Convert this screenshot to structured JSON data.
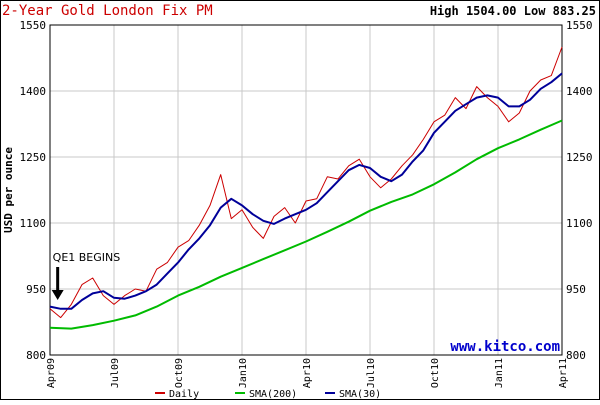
{
  "header": {
    "title": "2-Year Gold London Fix PM",
    "high_low": "High 1504.00 Low 883.25"
  },
  "watermark": "www.kitco.com",
  "annotation": {
    "text": "QE1 BEGINS",
    "date": "Apr09b"
  },
  "colors": {
    "daily": "#cc0000",
    "sma200": "#00bb00",
    "sma30": "#000099",
    "grid": "#c8c8c8",
    "title": "#cc0000",
    "watermark": "#0000cc"
  },
  "chart_data": {
    "type": "line",
    "ylabel": "USD per ounce",
    "ylim": [
      800,
      1550
    ],
    "yticks": [
      800,
      950,
      1100,
      1250,
      1400,
      1550
    ],
    "ytick_labels": [
      "800",
      "950",
      "1100",
      "1250",
      "1400",
      "1550"
    ],
    "xtick_labels": [
      "Apr09",
      "Jul09",
      "Oct09",
      "Jan10",
      "Apr10",
      "Jul10",
      "Oct10",
      "Jan11",
      "Apr11"
    ],
    "grid": true,
    "legend_position": "bottom",
    "series": [
      {
        "name": "Daily",
        "color": "#cc0000",
        "values": [
          [
            "Apr09",
            905
          ],
          [
            "Apr09b",
            885
          ],
          [
            "May09a",
            915
          ],
          [
            "May09b",
            960
          ],
          [
            "Jun09a",
            975
          ],
          [
            "Jun09b",
            935
          ],
          [
            "Jul09a",
            915
          ],
          [
            "Jul09b",
            935
          ],
          [
            "Aug09a",
            950
          ],
          [
            "Aug09b",
            945
          ],
          [
            "Sep09a",
            995
          ],
          [
            "Sep09b",
            1010
          ],
          [
            "Oct09a",
            1045
          ],
          [
            "Oct09b",
            1060
          ],
          [
            "Nov09a",
            1095
          ],
          [
            "Nov09b",
            1140
          ],
          [
            "Dec09a",
            1210
          ],
          [
            "Dec09b",
            1110
          ],
          [
            "Jan10a",
            1130
          ],
          [
            "Jan10b",
            1090
          ],
          [
            "Feb10a",
            1065
          ],
          [
            "Feb10b",
            1115
          ],
          [
            "Mar10a",
            1135
          ],
          [
            "Mar10b",
            1100
          ],
          [
            "Apr10a",
            1150
          ],
          [
            "Apr10b",
            1155
          ],
          [
            "May10a",
            1205
          ],
          [
            "May10b",
            1200
          ],
          [
            "Jun10a",
            1230
          ],
          [
            "Jun10b",
            1245
          ],
          [
            "Jul10a",
            1205
          ],
          [
            "Jul10b",
            1180
          ],
          [
            "Aug10a",
            1200
          ],
          [
            "Aug10b",
            1230
          ],
          [
            "Sep10a",
            1255
          ],
          [
            "Sep10b",
            1290
          ],
          [
            "Oct10a",
            1330
          ],
          [
            "Oct10b",
            1345
          ],
          [
            "Nov10a",
            1385
          ],
          [
            "Nov10b",
            1360
          ],
          [
            "Dec10a",
            1410
          ],
          [
            "Dec10b",
            1385
          ],
          [
            "Jan11a",
            1365
          ],
          [
            "Jan11b",
            1330
          ],
          [
            "Feb11a",
            1350
          ],
          [
            "Feb11b",
            1400
          ],
          [
            "Mar11a",
            1425
          ],
          [
            "Mar11b",
            1435
          ],
          [
            "Apr11",
            1500
          ]
        ]
      },
      {
        "name": "SMA(200)",
        "color": "#00bb00",
        "values": [
          [
            "Apr09",
            862
          ],
          [
            "May09a",
            860
          ],
          [
            "Jun09a",
            868
          ],
          [
            "Jul09a",
            878
          ],
          [
            "Aug09a",
            890
          ],
          [
            "Sep09a",
            910
          ],
          [
            "Oct09a",
            935
          ],
          [
            "Nov09a",
            955
          ],
          [
            "Dec09a",
            978
          ],
          [
            "Jan10a",
            998
          ],
          [
            "Feb10a",
            1018
          ],
          [
            "Mar10a",
            1038
          ],
          [
            "Apr10a",
            1058
          ],
          [
            "May10a",
            1080
          ],
          [
            "Jun10a",
            1103
          ],
          [
            "Jul10a",
            1128
          ],
          [
            "Aug10a",
            1148
          ],
          [
            "Sep10a",
            1165
          ],
          [
            "Oct10a",
            1188
          ],
          [
            "Nov10a",
            1215
          ],
          [
            "Dec10a",
            1245
          ],
          [
            "Jan11a",
            1270
          ],
          [
            "Feb11a",
            1290
          ],
          [
            "Mar11a",
            1312
          ],
          [
            "Apr11",
            1333
          ]
        ]
      },
      {
        "name": "SMA(30)",
        "color": "#000099",
        "values": [
          [
            "Apr09",
            910
          ],
          [
            "Apr09b",
            905
          ],
          [
            "May09a",
            905
          ],
          [
            "May09b",
            925
          ],
          [
            "Jun09a",
            940
          ],
          [
            "Jun09b",
            945
          ],
          [
            "Jul09a",
            930
          ],
          [
            "Jul09b",
            928
          ],
          [
            "Aug09a",
            935
          ],
          [
            "Aug09b",
            945
          ],
          [
            "Sep09a",
            960
          ],
          [
            "Sep09b",
            985
          ],
          [
            "Oct09a",
            1010
          ],
          [
            "Oct09b",
            1040
          ],
          [
            "Nov09a",
            1065
          ],
          [
            "Nov09b",
            1095
          ],
          [
            "Dec09a",
            1135
          ],
          [
            "Dec09b",
            1155
          ],
          [
            "Jan10a",
            1140
          ],
          [
            "Jan10b",
            1120
          ],
          [
            "Feb10a",
            1105
          ],
          [
            "Feb10b",
            1098
          ],
          [
            "Mar10a",
            1110
          ],
          [
            "Mar10b",
            1120
          ],
          [
            "Apr10a",
            1130
          ],
          [
            "Apr10b",
            1145
          ],
          [
            "May10a",
            1170
          ],
          [
            "May10b",
            1195
          ],
          [
            "Jun10a",
            1220
          ],
          [
            "Jun10b",
            1232
          ],
          [
            "Jul10a",
            1225
          ],
          [
            "Jul10b",
            1205
          ],
          [
            "Aug10a",
            1195
          ],
          [
            "Aug10b",
            1210
          ],
          [
            "Sep10a",
            1240
          ],
          [
            "Sep10b",
            1265
          ],
          [
            "Oct10a",
            1305
          ],
          [
            "Oct10b",
            1330
          ],
          [
            "Nov10a",
            1355
          ],
          [
            "Nov10b",
            1370
          ],
          [
            "Dec10a",
            1385
          ],
          [
            "Dec10b",
            1390
          ],
          [
            "Jan11a",
            1385
          ],
          [
            "Jan11b",
            1365
          ],
          [
            "Feb11a",
            1365
          ],
          [
            "Feb11b",
            1380
          ],
          [
            "Mar11a",
            1405
          ],
          [
            "Mar11b",
            1420
          ],
          [
            "Apr11",
            1440
          ]
        ]
      }
    ]
  }
}
